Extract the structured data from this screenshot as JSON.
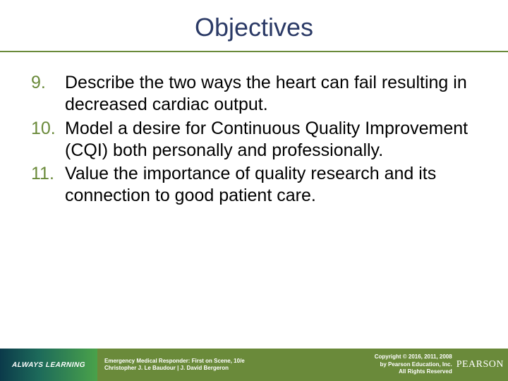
{
  "title": "Objectives",
  "colors": {
    "title_color": "#2b3a66",
    "accent": "#6a8a3a",
    "text": "#000000",
    "footer_text": "#ffffff",
    "footer_left_grad_start": "#0b3a4a",
    "footer_left_grad_mid": "#1d6a5a",
    "footer_left_grad_end": "#4aa24a"
  },
  "typography": {
    "title_fontsize": 36,
    "body_fontsize": 25,
    "footer_small_fontsize": 8,
    "always_learning_fontsize": 10,
    "pearson_fontsize": 14
  },
  "objectives": [
    {
      "num": "9.",
      "text": "Describe the two ways the heart can fail resulting in decreased cardiac output."
    },
    {
      "num": "10.",
      "text": "Model a desire for Continuous Quality Improvement (CQI) both personally and professionally."
    },
    {
      "num": "11.",
      "text": "Value the importance of quality research and its connection to good patient care."
    }
  ],
  "footer": {
    "always_learning": "ALWAYS LEARNING",
    "book_line1": "Emergency Medical Responder: First on Scene, 10/e",
    "book_line2": "Christopher J. Le Baudour | J. David Bergeron",
    "copyright_line1": "Copyright © 2016, 2011, 2008",
    "copyright_line2": "by Pearson Education, Inc.",
    "copyright_line3": "All Rights Reserved",
    "brand": "PEARSON"
  }
}
